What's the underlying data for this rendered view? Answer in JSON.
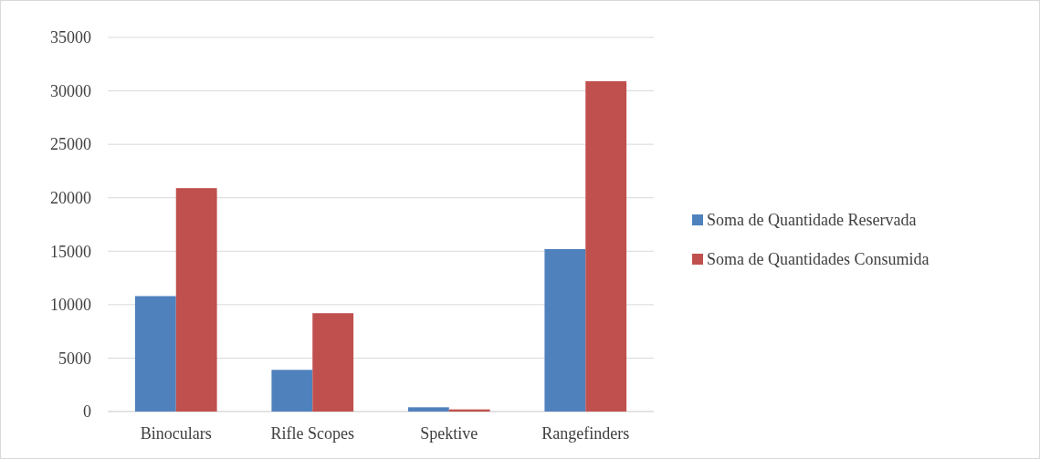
{
  "chart_data": {
    "type": "bar",
    "categories": [
      "Binoculars",
      "Rifle Scopes",
      "Spektive",
      "Rangefinders"
    ],
    "series": [
      {
        "name": "Soma de Quantidade Reservada",
        "color": "#4f81bd",
        "values": [
          10800,
          3900,
          400,
          15200
        ]
      },
      {
        "name": "Soma de Quantidades Consumida",
        "color": "#c0504d",
        "values": [
          20900,
          9200,
          200,
          30900
        ]
      }
    ],
    "ylim": [
      0,
      35000
    ],
    "yticks": [
      0,
      5000,
      10000,
      15000,
      20000,
      25000,
      30000,
      35000
    ],
    "grid": "y",
    "legend": "right"
  }
}
